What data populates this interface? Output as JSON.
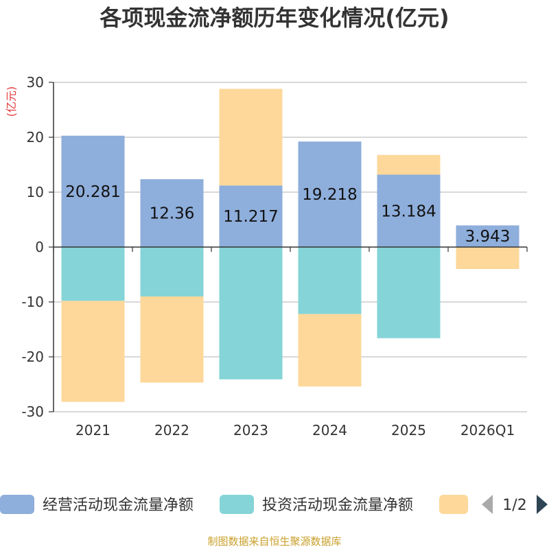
{
  "chart_data": {
    "type": "bar",
    "stacked": true,
    "title": "各项现金流净额历年变化情况(亿元)",
    "unit_label": "(亿元)",
    "categories": [
      "2021",
      "2022",
      "2023",
      "2024",
      "2025",
      "2026Q1"
    ],
    "ylim": [
      -30,
      30
    ],
    "yticks": [
      30,
      20,
      10,
      0,
      -10,
      -20,
      -30
    ],
    "grid": true,
    "series": [
      {
        "name": "经营活动现金流量净额",
        "color": "#8eaedb",
        "values": [
          20.281,
          12.36,
          11.217,
          19.218,
          13.184,
          3.943
        ],
        "labels": [
          "20.281",
          "12.36",
          "11.217",
          "19.218",
          "13.184",
          "3.943"
        ]
      },
      {
        "name": "投资活动现金流量净额",
        "color": "#85d4d7",
        "values": [
          -9.8,
          -9.0,
          -24.1,
          -12.2,
          -16.6,
          0
        ]
      },
      {
        "name": "",
        "color": "#fdd89a",
        "values": [
          -18.4,
          -15.7,
          17.6,
          -13.2,
          3.6,
          -4.0
        ]
      }
    ],
    "legend": {
      "position": "bottom",
      "page": "1/2"
    }
  },
  "source": "制图数据来自恒生聚源数据库"
}
